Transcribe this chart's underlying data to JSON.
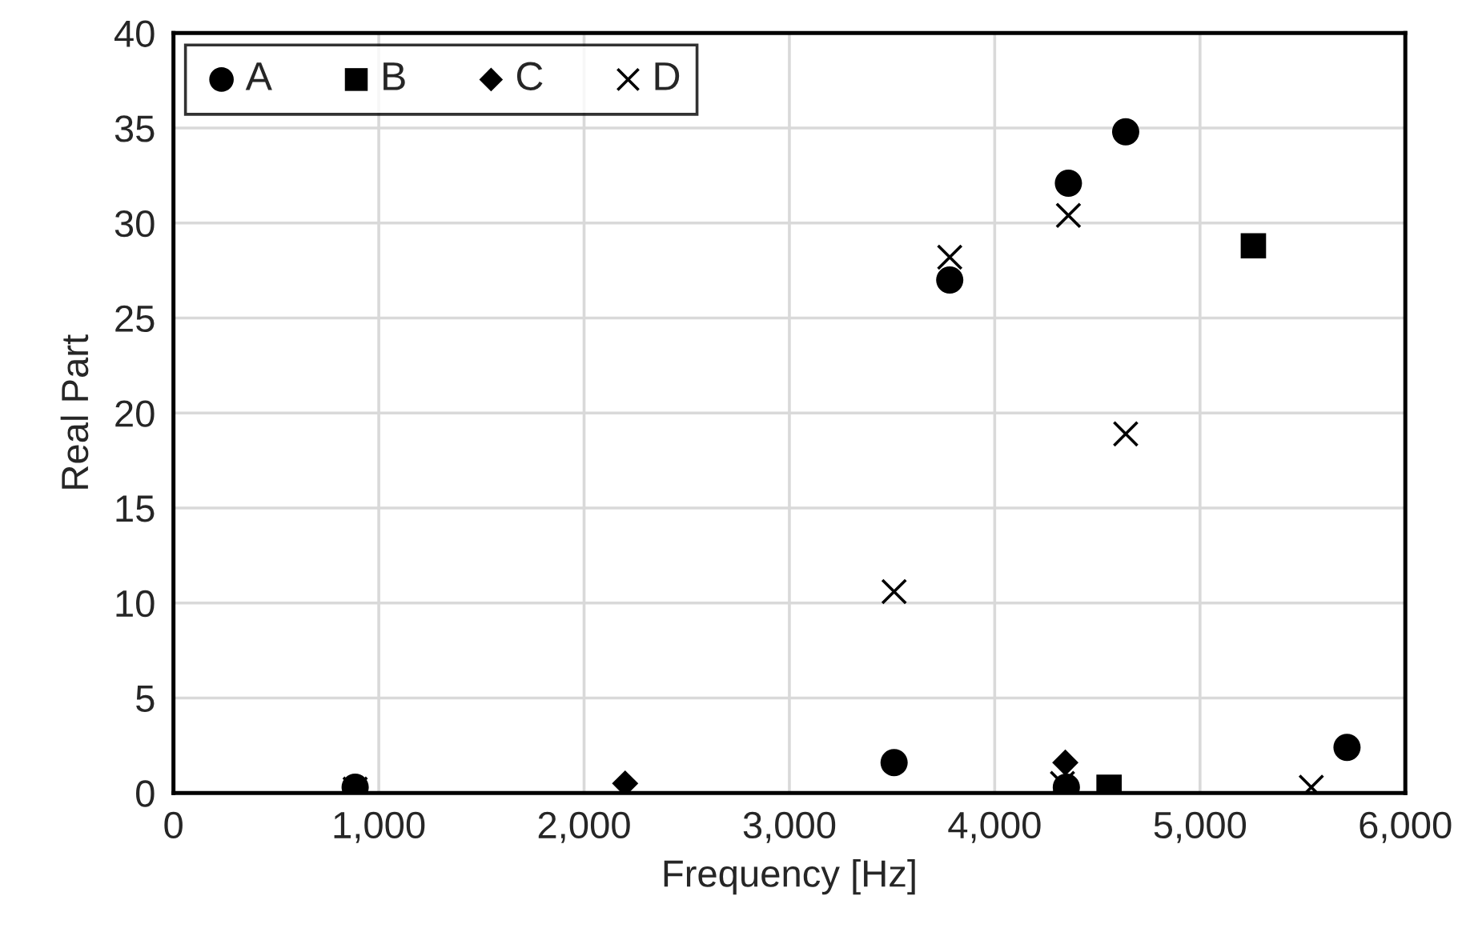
{
  "chart_data": {
    "type": "scatter",
    "xlabel": "Frequency [Hz]",
    "ylabel": "Real Part",
    "xlim": [
      0,
      6000
    ],
    "ylim": [
      0,
      40
    ],
    "xticks": [
      {
        "value": 0,
        "label": "0"
      },
      {
        "value": 1000,
        "label": "1,000"
      },
      {
        "value": 2000,
        "label": "2,000"
      },
      {
        "value": 3000,
        "label": "3,000"
      },
      {
        "value": 4000,
        "label": "4,000"
      },
      {
        "value": 5000,
        "label": "5,000"
      },
      {
        "value": 6000,
        "label": "6,000"
      }
    ],
    "yticks": [
      0,
      5,
      10,
      15,
      20,
      25,
      30,
      35,
      40
    ],
    "grid": true,
    "legend": "top left",
    "series": [
      {
        "name": "A",
        "color": "#000000",
        "marker": "circle",
        "x": [
          885,
          3510,
          3781,
          4349,
          4359,
          4638,
          5716
        ],
        "values": [
          0.3,
          1.6,
          27.0,
          0.3,
          32.1,
          34.8,
          2.4
        ]
      },
      {
        "name": "B",
        "color": "#000000",
        "marker": "square",
        "x": [
          4557,
          5260
        ],
        "values": [
          0.3,
          28.8
        ]
      },
      {
        "name": "C",
        "color": "#000000",
        "marker": "diamond",
        "x": [
          2200,
          4344
        ],
        "values": [
          0.5,
          1.6
        ]
      },
      {
        "name": "D",
        "color": "#000000",
        "marker": "cross",
        "x": [
          885,
          3510,
          3781,
          4330,
          4359,
          4638,
          5542
        ],
        "values": [
          0.2,
          10.6,
          28.2,
          0.5,
          30.4,
          18.9,
          0.3
        ]
      }
    ]
  }
}
